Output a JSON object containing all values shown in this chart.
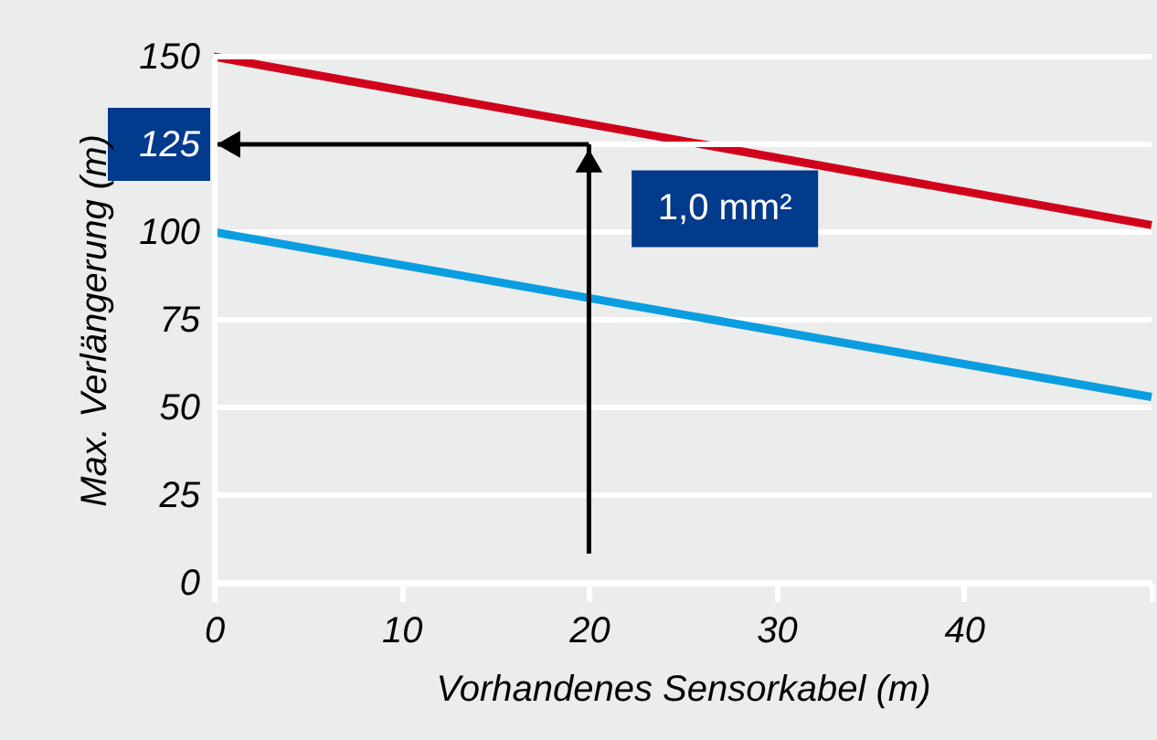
{
  "chart_data": {
    "type": "line",
    "xlabel": "Vorhandenes Sensorkabel (m)",
    "ylabel": "Max. Verlängerung (m)",
    "x": [
      0,
      50
    ],
    "series": [
      {
        "name": "1,0 mm²",
        "color": "#d0021b",
        "values": [
          150,
          102
        ]
      },
      {
        "color": "#0a9de0",
        "values": [
          100,
          53
        ]
      }
    ],
    "xlim": [
      0,
      50
    ],
    "xticks": [
      0,
      10,
      20,
      30,
      40,
      {
        "value": 50,
        "label": null
      }
    ],
    "ylim": [
      0,
      150
    ],
    "yticks": [
      0,
      25,
      50,
      75,
      100,
      125,
      150
    ],
    "grid": "y",
    "legend": false,
    "marker": "none",
    "line_style": "solid",
    "ref_lines": [
      {
        "axis": "x",
        "value": 20,
        "color": "#000000"
      },
      {
        "axis": "y",
        "value": 125,
        "color": "#000000"
      }
    ]
  }
}
